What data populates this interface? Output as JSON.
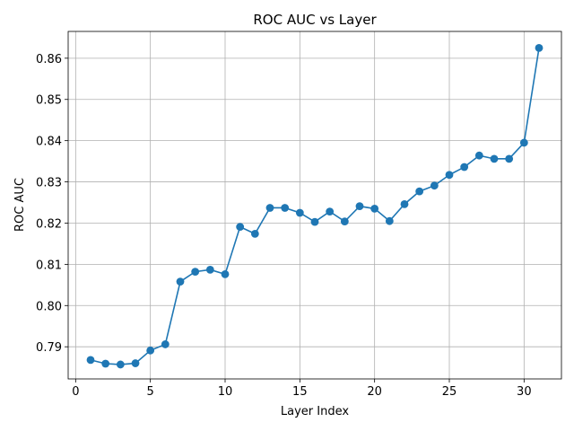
{
  "chart_data": {
    "type": "line",
    "title": "ROC AUC vs Layer",
    "xlabel": "Layer Index",
    "ylabel": "ROC AUC",
    "xlim": [
      -0.5,
      32.5
    ],
    "ylim": [
      0.7822,
      0.8665
    ],
    "xticks": [
      0,
      5,
      10,
      15,
      20,
      25,
      30
    ],
    "yticks": [
      0.79,
      0.8,
      0.81,
      0.82,
      0.83,
      0.84,
      0.85,
      0.86
    ],
    "xtick_labels": [
      "0",
      "5",
      "10",
      "15",
      "20",
      "25",
      "30"
    ],
    "ytick_labels": [
      "0.79",
      "0.80",
      "0.81",
      "0.82",
      "0.83",
      "0.84",
      "0.85",
      "0.86"
    ],
    "grid": true,
    "color": "#1f77b4",
    "marker": "circle",
    "series": [
      {
        "x": [
          1,
          2,
          3,
          4,
          5,
          6,
          7,
          8,
          9,
          10,
          11,
          12,
          13,
          14,
          15,
          16,
          17,
          18,
          19,
          20,
          21,
          22,
          23,
          24,
          25,
          26,
          27,
          28,
          29,
          30,
          31
        ],
        "values": [
          0.7868,
          0.7859,
          0.7857,
          0.786,
          0.7891,
          0.7906,
          0.8058,
          0.8082,
          0.8087,
          0.8076,
          0.8191,
          0.8174,
          0.8237,
          0.8237,
          0.8225,
          0.8203,
          0.8228,
          0.8204,
          0.8241,
          0.8235,
          0.8205,
          0.8246,
          0.8277,
          0.8291,
          0.8317,
          0.8336,
          0.8364,
          0.8356,
          0.8356,
          0.8395,
          0.8625
        ]
      }
    ]
  }
}
